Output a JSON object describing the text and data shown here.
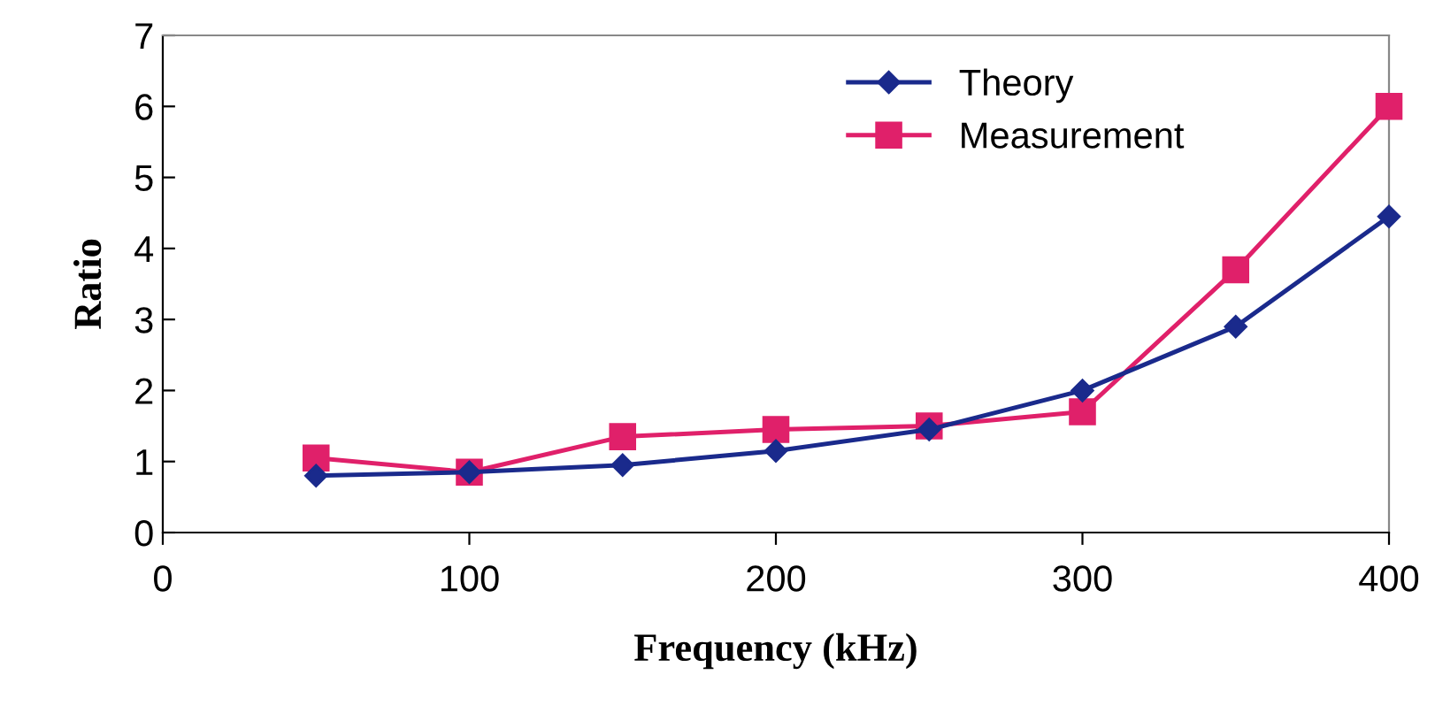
{
  "chart_data": {
    "type": "line",
    "xlabel": "Frequency (kHz)",
    "ylabel": "Ratio",
    "x": [
      50,
      100,
      150,
      200,
      250,
      300,
      350,
      400
    ],
    "series": [
      {
        "name": "Theory",
        "color": "#1a2a8c",
        "marker": "diamond",
        "values": [
          0.8,
          0.85,
          0.95,
          1.15,
          1.45,
          2.0,
          2.9,
          4.45
        ]
      },
      {
        "name": "Measurement",
        "color": "#e0206a",
        "marker": "square",
        "values": [
          1.05,
          0.85,
          1.35,
          1.45,
          1.5,
          1.7,
          3.7,
          6.0
        ]
      }
    ],
    "xlim": [
      0,
      400
    ],
    "xticks": [
      0,
      100,
      200,
      300,
      400
    ],
    "ylim": [
      0,
      7
    ],
    "yticks": [
      0,
      1,
      2,
      3,
      4,
      5,
      6,
      7
    ],
    "grid": false,
    "legend": "top right",
    "line_style": "solid"
  }
}
